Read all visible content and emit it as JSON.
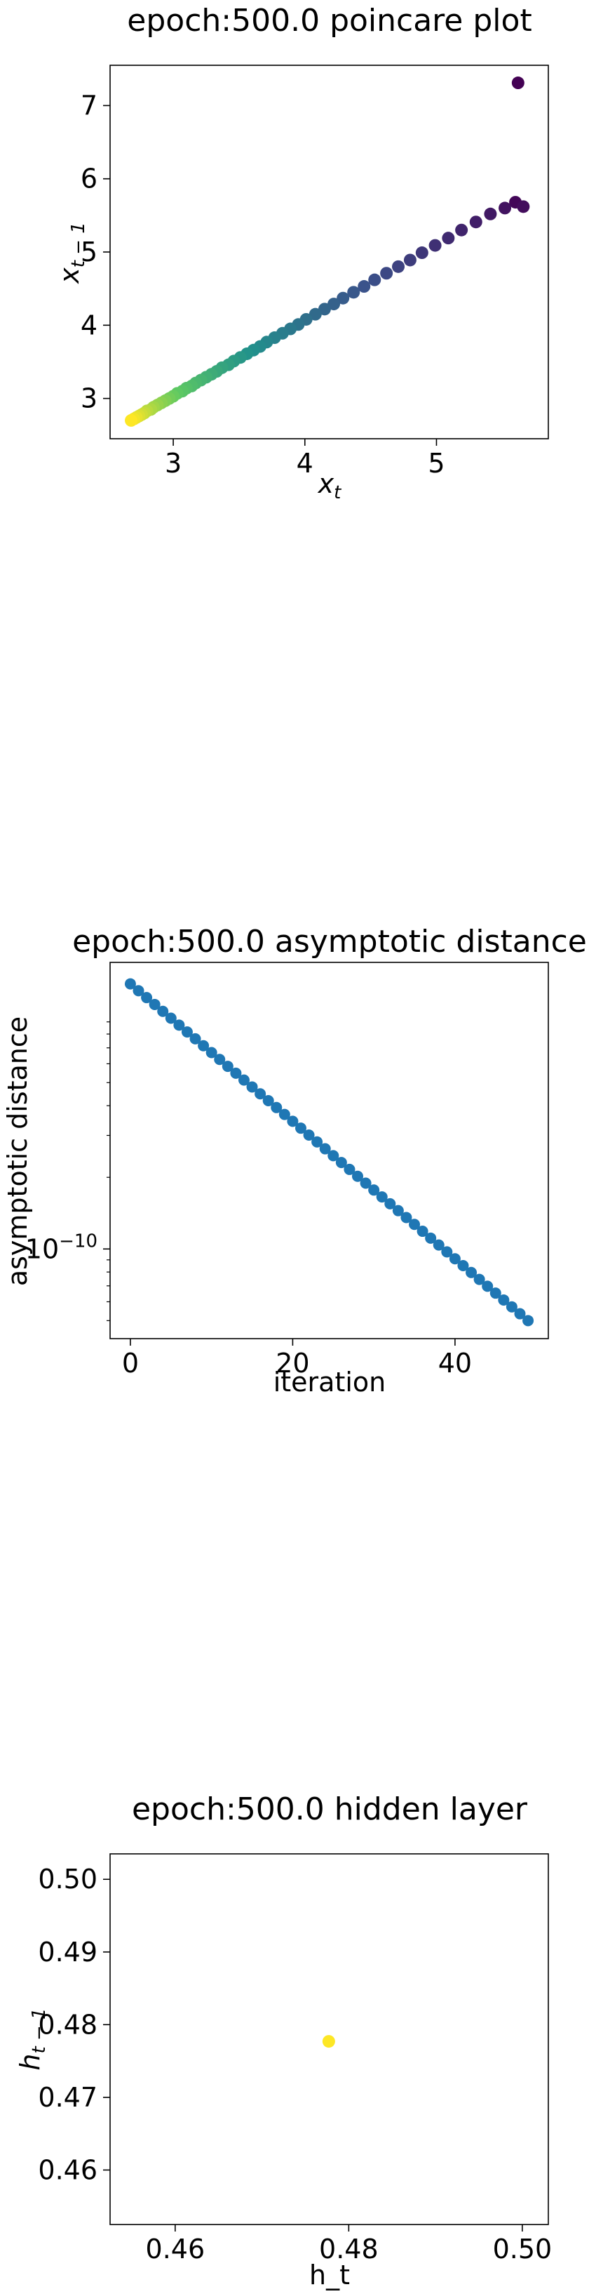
{
  "chart_data": [
    {
      "type": "scatter",
      "title": "epoch:500.0 poincare plot",
      "xlabel": "x",
      "xlabel_sub": "t",
      "ylabel": "x",
      "ylabel_sub": "t − 1",
      "xlim": [
        2.52,
        5.85
      ],
      "ylim": [
        2.45,
        7.55
      ],
      "xticks": [
        3,
        4,
        5
      ],
      "yticks": [
        3,
        4,
        5,
        6,
        7
      ],
      "colormap": "viridis",
      "x": [
        5.62,
        5.6,
        5.66,
        5.52,
        5.41,
        5.3,
        5.19,
        5.09,
        4.99,
        4.89,
        4.8,
        4.71,
        4.62,
        4.53,
        4.45,
        4.37,
        4.29,
        4.22,
        4.15,
        4.08,
        4.01,
        3.95,
        3.89,
        3.83,
        3.77,
        3.71,
        3.66,
        3.61,
        3.56,
        3.51,
        3.46,
        3.42,
        3.37,
        3.33,
        3.29,
        3.25,
        3.21,
        3.17,
        3.14,
        3.1,
        3.07,
        3.03,
        3.0,
        2.97,
        2.94,
        2.91,
        2.88,
        2.85,
        2.83,
        2.8,
        2.78,
        2.76,
        2.74,
        2.72,
        2.7,
        2.68
      ],
      "y": [
        7.31,
        5.68,
        5.62,
        5.6,
        5.52,
        5.41,
        5.3,
        5.19,
        5.09,
        4.99,
        4.89,
        4.8,
        4.71,
        4.62,
        4.53,
        4.45,
        4.37,
        4.29,
        4.22,
        4.15,
        4.08,
        4.01,
        3.95,
        3.89,
        3.83,
        3.77,
        3.71,
        3.66,
        3.61,
        3.56,
        3.51,
        3.46,
        3.42,
        3.37,
        3.33,
        3.29,
        3.25,
        3.21,
        3.17,
        3.14,
        3.1,
        3.07,
        3.03,
        3.0,
        2.97,
        2.94,
        2.91,
        2.88,
        2.85,
        2.83,
        2.8,
        2.78,
        2.76,
        2.74,
        2.72,
        2.7
      ]
    },
    {
      "type": "scatter",
      "title": "epoch:500.0 asymptotic distance",
      "xlabel": "iteration",
      "ylabel": "asymptotic distance",
      "yscale": "log",
      "xlim": [
        -2.5,
        51.5
      ],
      "ylim": [
        4.2e-11,
        1.6e-09
      ],
      "xticks": [
        0,
        20,
        40
      ],
      "ytick_labels": [
        {
          "value": 1e-10,
          "base": "10",
          "exp": "−10"
        }
      ],
      "color": "#1f77b4",
      "x": [
        0,
        1,
        2,
        3,
        4,
        5,
        6,
        7,
        8,
        9,
        10,
        11,
        12,
        13,
        14,
        15,
        16,
        17,
        18,
        19,
        20,
        21,
        22,
        23,
        24,
        25,
        26,
        27,
        28,
        29,
        30,
        31,
        32,
        33,
        34,
        35,
        36,
        37,
        38,
        39,
        40,
        41,
        42,
        43,
        44,
        45,
        46,
        47,
        48,
        49
      ],
      "y_start": 1.3e-09,
      "y_end": 5e-11
    },
    {
      "type": "scatter",
      "title": "epoch:500.0 hidden layer",
      "xlabel": "h_t",
      "ylabel": "h",
      "ylabel_sub": "t − 1",
      "xlim": [
        0.4525,
        0.503
      ],
      "ylim": [
        0.4525,
        0.5035
      ],
      "xticks": [
        0.46,
        0.48,
        0.5
      ],
      "xtick_labels": [
        "0.46",
        "0.48",
        "0.50"
      ],
      "yticks": [
        0.46,
        0.47,
        0.48,
        0.49,
        0.5
      ],
      "ytick_labels": [
        "0.46",
        "0.47",
        "0.48",
        "0.49",
        "0.50"
      ],
      "color": "#fde725",
      "x": [
        0.4777
      ],
      "y": [
        0.4777
      ]
    }
  ]
}
